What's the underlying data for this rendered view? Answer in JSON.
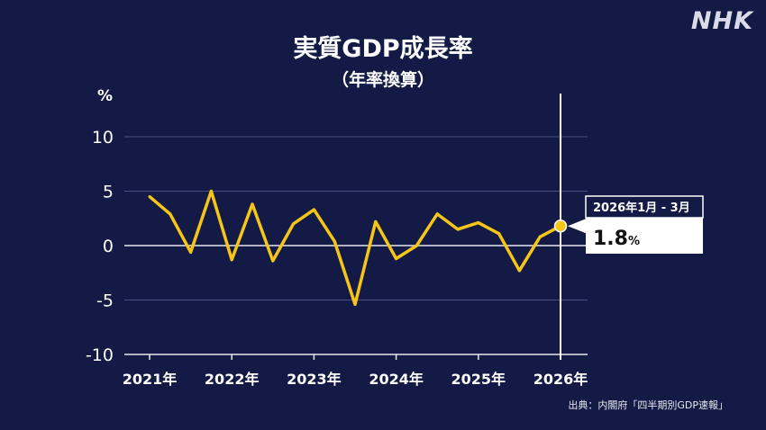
{
  "logo": "NHK",
  "chart_data": {
    "type": "line",
    "title": "実質GDP成長率",
    "subtitle": "（年率換算）",
    "ylabel": "%",
    "ylim": [
      -10,
      10
    ],
    "yticks": [
      10,
      5,
      0,
      -5,
      -10
    ],
    "xticks": [
      "2021年",
      "2022年",
      "2023年",
      "2024年",
      "2025年",
      "2026年"
    ],
    "series": [
      {
        "color": "#f5c518",
        "x": [
          2021.0,
          2021.25,
          2021.5,
          2021.75,
          2022.0,
          2022.25,
          2022.5,
          2022.75,
          2023.0,
          2023.25,
          2023.5,
          2023.75,
          2024.0,
          2024.25,
          2024.5,
          2024.75,
          2025.0,
          2025.25,
          2025.5,
          2025.75,
          2026.0
        ],
        "values": [
          4.5,
          2.9,
          -0.6,
          5.0,
          -1.3,
          3.8,
          -1.4,
          2.0,
          3.3,
          0.4,
          -5.4,
          2.2,
          -1.2,
          0.0,
          2.9,
          1.5,
          2.1,
          1.1,
          -2.3,
          0.8,
          1.8
        ]
      }
    ],
    "highlight": {
      "label": "2026年1月 - 3月",
      "value": "1.8",
      "unit": "%"
    },
    "grid": true
  },
  "source": "出典：内閣府「四半期別GDP速報」"
}
